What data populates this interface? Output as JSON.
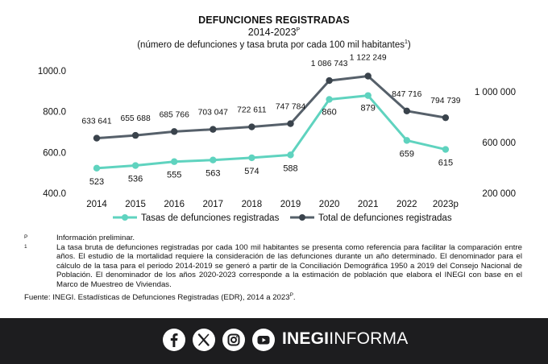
{
  "header": {
    "title": "DEFUNCIONES REGISTRADAS",
    "subtitle": "2014-2023",
    "subtitle_sup": "P",
    "unit": "(número de defunciones y tasa bruta por cada 100 mil habitantes",
    "unit_sup": "1",
    "unit_close": ")"
  },
  "chart_data": {
    "type": "line",
    "categories": [
      "2014",
      "2015",
      "2016",
      "2017",
      "2018",
      "2019",
      "2020",
      "2021",
      "2022",
      "2023p"
    ],
    "series": [
      {
        "name": "Tasas de defunciones registradas",
        "axis": "left",
        "color": "#5fd3bf",
        "values": [
          523,
          536,
          555,
          563,
          574,
          588,
          860,
          879,
          659,
          615
        ],
        "labels": [
          "523",
          "536",
          "555",
          "563",
          "574",
          "588",
          "860",
          "879",
          "659",
          "615"
        ]
      },
      {
        "name": "Total de defunciones registradas",
        "axis": "right",
        "color": "#56606a",
        "marker_color": "#3a434c",
        "values": [
          633641,
          655688,
          685766,
          703047,
          722611,
          747784,
          1086743,
          1122249,
          847716,
          794739
        ],
        "labels": [
          "633 641",
          "655 688",
          "685 766",
          "703 047",
          "722 611",
          "747 784",
          "1 086 743",
          "1 122 249",
          "847 716",
          "794 739"
        ]
      }
    ],
    "y_left": {
      "min": 400,
      "max": 1000,
      "ticks": [
        400,
        600,
        800,
        1000
      ],
      "tick_labels": [
        "400.0",
        "600.0",
        "800.0",
        "1000.0"
      ]
    },
    "y_right": {
      "min": 200000,
      "max": 1100000,
      "ticks": [
        200000,
        600000,
        1000000
      ],
      "tick_labels": [
        "200 000",
        "600 000",
        "1 000 000"
      ]
    },
    "grid": false,
    "legend": "bottom"
  },
  "notes": {
    "items": [
      {
        "mark": "P",
        "text": "Información preliminar."
      },
      {
        "mark": "1",
        "text": "La tasa bruta de defunciones registradas por cada 100 mil habitantes se presenta como referencia para facilitar la comparación entre años. El estudio de la mortalidad requiere la consideración de las defunciones durante un año determinado. El denominador para el cálculo de la tasa para el periodo 2014-2019 se generó a partir de la Conciliación Demográfica 1950 a 2019 del Consejo Nacional de Población. El denominador de los años 2020-2023 corresponde a la estimación de población que elabora el INEGI con base en el Marco de Muestreo de Viviendas."
      }
    ],
    "source": "Fuente: INEGI. Estadísticas de Defunciones Registradas (EDR), 2014 a 2023",
    "source_sup": "P",
    "source_end": "."
  },
  "footer": {
    "icons": [
      "facebook-icon",
      "x-icon",
      "instagram-icon",
      "youtube-icon"
    ],
    "brand_bold": "INEGI",
    "brand_light": "INFORMA",
    "bg": "#1d1d1f"
  }
}
